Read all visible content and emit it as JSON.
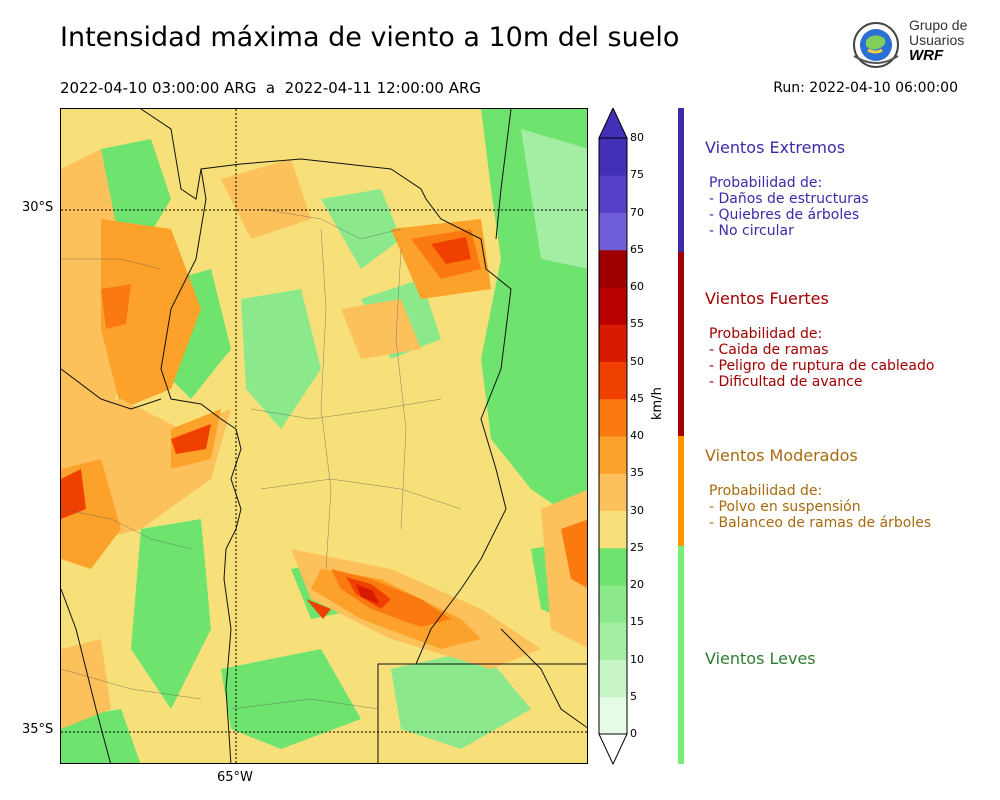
{
  "title": "Intensidad máxima de viento a 10m del suelo",
  "period": "2022-04-10 03:00:00 ARG  a  2022-04-11 12:00:00 ARG",
  "run": "Run: 2022-04-10 06:00:00",
  "logo": {
    "text_line1": "Grupo de",
    "text_line2": "Usuarios",
    "text_line3": "WRF"
  },
  "map": {
    "lat_labels": [
      "30°S",
      "35°S"
    ],
    "lon_labels": [
      "65°W"
    ]
  },
  "colorbar": {
    "unit": "km/h",
    "ticks": [
      "80",
      "75",
      "70",
      "65",
      "60",
      "55",
      "50",
      "45",
      "40",
      "35",
      "30",
      "25",
      "20",
      "15",
      "10",
      "5",
      "0"
    ],
    "colors": [
      "#e6fbe6",
      "#c7f5c7",
      "#a3eea3",
      "#8be88b",
      "#6ee46e",
      "#f7e07a",
      "#fcc15a",
      "#fca12a",
      "#fb7a10",
      "#f04000",
      "#d81a00",
      "#b80000",
      "#9e0000",
      "#6e5fd8",
      "#5540c8",
      "#4330b8"
    ]
  },
  "categories": [
    {
      "name": "Vientos Extremos",
      "color": "#3d2aa8",
      "lines": [
        "Probabilidad de:",
        "- Daños de estructuras",
        "- Quiebres de árboles",
        "- No circular"
      ]
    },
    {
      "name": "Vientos Fuertes",
      "color": "#a00000",
      "lines": [
        "Probabilidad de:",
        "- Caida de ramas",
        "- Peligro de ruptura de cableado",
        "- Dificultad de avance"
      ]
    },
    {
      "name": "Vientos Moderados",
      "color": "#a86a10",
      "lines": [
        "Probabilidad de:",
        "- Polvo en suspensión",
        "- Balanceo de ramas de árboles"
      ]
    },
    {
      "name": "Vientos Leves",
      "color": "#2e7d32",
      "lines": []
    }
  ]
}
